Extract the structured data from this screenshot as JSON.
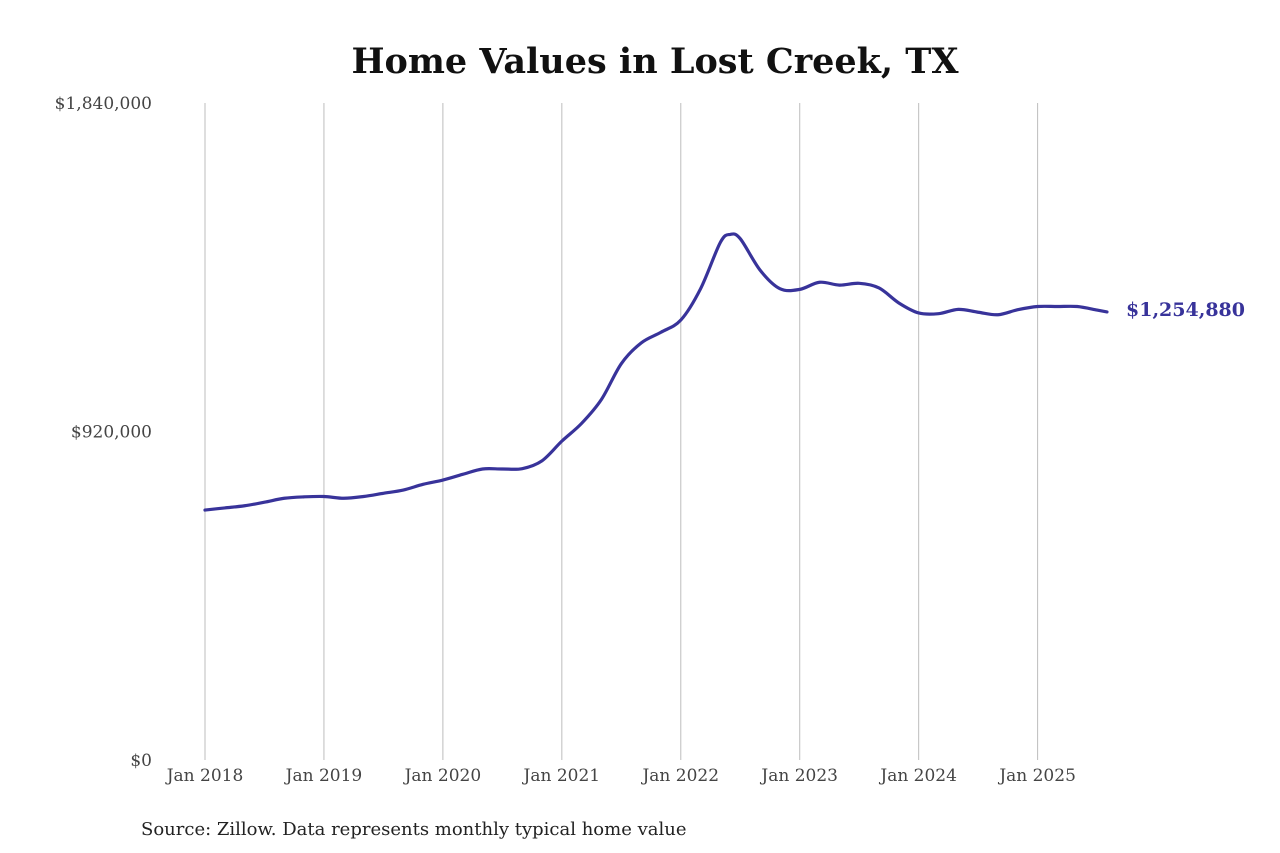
{
  "chart_data": {
    "type": "line",
    "title": "Home Values in Lost Creek, TX",
    "xlabel": "",
    "ylabel": "",
    "ylim": [
      0,
      1840000
    ],
    "y_tick_labels": [
      "$0",
      "$920,000",
      "$1,840,000"
    ],
    "y_ticks": [
      0,
      920000,
      1840000
    ],
    "x_range": [
      "2018-01",
      "2025-08"
    ],
    "x_tick_labels": [
      "Jan 2018",
      "Jan 2019",
      "Jan 2020",
      "Jan 2021",
      "Jan 2022",
      "Jan 2023",
      "Jan 2024",
      "Jan 2025"
    ],
    "x_ticks": [
      "2018-01",
      "2019-01",
      "2020-01",
      "2021-01",
      "2022-01",
      "2023-01",
      "2024-01",
      "2025-01"
    ],
    "grid": "vertical",
    "legend": "none",
    "series": [
      {
        "color": "#38339a",
        "end_label": "$1,254,880",
        "points": [
          [
            "2018-01",
            700000
          ],
          [
            "2018-03",
            706000
          ],
          [
            "2018-05",
            712000
          ],
          [
            "2018-07",
            722000
          ],
          [
            "2018-09",
            733000
          ],
          [
            "2018-11",
            737000
          ],
          [
            "2019-01",
            738000
          ],
          [
            "2019-03",
            733000
          ],
          [
            "2019-05",
            738000
          ],
          [
            "2019-07",
            747000
          ],
          [
            "2019-09",
            756000
          ],
          [
            "2019-11",
            772000
          ],
          [
            "2020-01",
            784000
          ],
          [
            "2020-03",
            800000
          ],
          [
            "2020-05",
            815000
          ],
          [
            "2020-07",
            815000
          ],
          [
            "2020-09",
            816000
          ],
          [
            "2020-11",
            838000
          ],
          [
            "2021-01",
            893000
          ],
          [
            "2021-03",
            943000
          ],
          [
            "2021-05",
            1010000
          ],
          [
            "2021-07",
            1110000
          ],
          [
            "2021-09",
            1168000
          ],
          [
            "2021-11",
            1198000
          ],
          [
            "2022-01",
            1232000
          ],
          [
            "2022-03",
            1320000
          ],
          [
            "2022-05",
            1450000
          ],
          [
            "2022-06",
            1472000
          ],
          [
            "2022-07",
            1460000
          ],
          [
            "2022-09",
            1372000
          ],
          [
            "2022-11",
            1320000
          ],
          [
            "2023-01",
            1318000
          ],
          [
            "2023-03",
            1338000
          ],
          [
            "2023-05",
            1330000
          ],
          [
            "2023-07",
            1335000
          ],
          [
            "2023-09",
            1322000
          ],
          [
            "2023-11",
            1280000
          ],
          [
            "2024-01",
            1252000
          ],
          [
            "2024-03",
            1250000
          ],
          [
            "2024-05",
            1262000
          ],
          [
            "2024-07",
            1254000
          ],
          [
            "2024-09",
            1247000
          ],
          [
            "2024-11",
            1261000
          ],
          [
            "2025-01",
            1270000
          ],
          [
            "2025-03",
            1270000
          ],
          [
            "2025-05",
            1270000
          ],
          [
            "2025-07",
            1260000
          ],
          [
            "2025-08",
            1254880
          ]
        ]
      }
    ],
    "source_note": "Source: Zillow. Data represents monthly typical home value"
  }
}
